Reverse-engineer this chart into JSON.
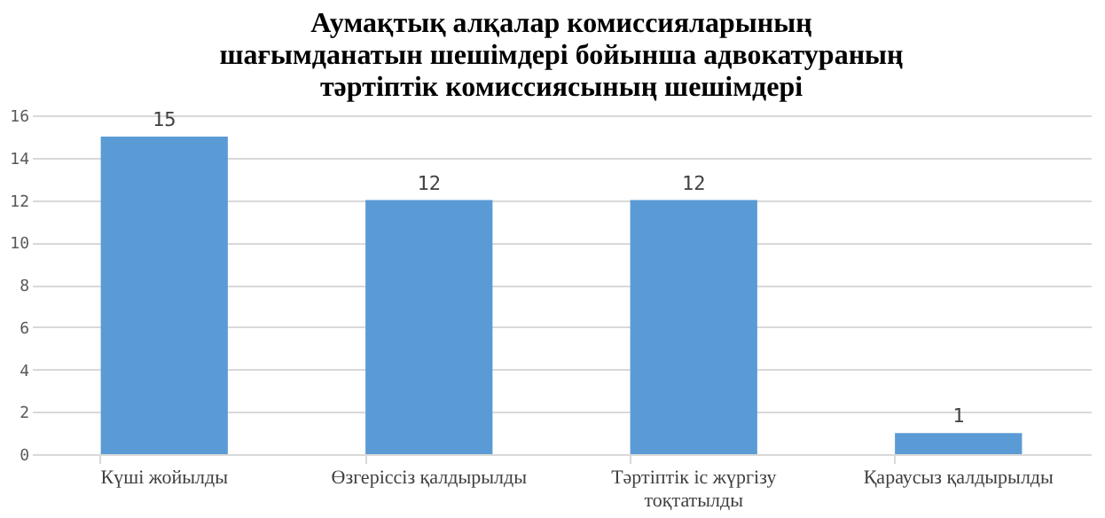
{
  "chart_data": {
    "type": "bar",
    "title": "Аумақтық алқалар комиссияларының\nшағымданатын шешімдері бойынша адвокатураның\nтәртіптік комиссиясының шешімдері",
    "categories": [
      "Күші жойылды",
      "Өзгеріссіз қалдырылды",
      "Тәртіптік іс жүргізу тоқтатылды",
      "Қараусыз қалдырылды"
    ],
    "values": [
      15,
      12,
      12,
      1
    ],
    "color": "#5b9bd5",
    "ylim": [
      0,
      16
    ],
    "yticks": [
      0,
      2,
      4,
      6,
      8,
      10,
      12,
      14,
      16
    ],
    "grid": "y",
    "data_labels": true
  }
}
